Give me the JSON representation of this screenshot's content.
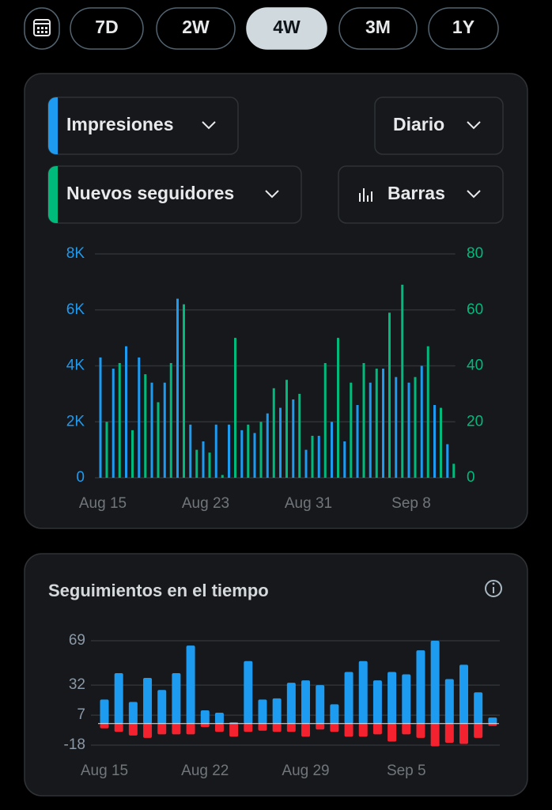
{
  "range_buttons": [
    "7D",
    "2W",
    "4W",
    "3M",
    "1Y"
  ],
  "selected_range": "4W",
  "controls": {
    "interval": "Diario",
    "chart_style": "Barras"
  },
  "chart_data": [
    {
      "type": "bar",
      "categories": [
        "Aug 15",
        null,
        null,
        null,
        null,
        null,
        null,
        null,
        "Aug 23",
        null,
        null,
        null,
        null,
        null,
        null,
        null,
        "Aug 31",
        null,
        null,
        null,
        null,
        null,
        null,
        null,
        "Sep 8",
        null,
        null,
        null
      ],
      "series": [
        {
          "name": "Impresiones",
          "color": "#1d9bf0",
          "values": [
            4300,
            3900,
            4700,
            4300,
            3400,
            3400,
            6400,
            1900,
            1300,
            1900,
            1900,
            1700,
            1600,
            2300,
            2500,
            2800,
            1000,
            1500,
            2000,
            1300,
            2600,
            3400,
            3900,
            3600,
            3400,
            4000,
            2600,
            1200
          ]
        },
        {
          "name": "Nuevos seguidores",
          "color": "#00ba7c",
          "axis": "y2",
          "values": [
            20,
            41,
            17,
            37,
            27,
            41,
            62,
            10,
            9,
            1,
            50,
            19,
            20,
            32,
            35,
            30,
            15,
            41,
            50,
            34,
            41,
            39,
            59,
            69,
            36,
            47,
            25,
            5
          ]
        }
      ],
      "ylim": [
        0,
        8000
      ],
      "yticks": [
        0,
        {
          "value": 2000,
          "label": "2K"
        },
        {
          "value": 4000,
          "label": "4K"
        },
        {
          "value": 6000,
          "label": "6K"
        },
        {
          "value": 8000,
          "label": "8K"
        }
      ],
      "y2lim": [
        0,
        80
      ],
      "y2ticks": [
        0,
        20,
        40,
        60,
        80
      ],
      "grid": true
    },
    {
      "type": "bar",
      "title": "Seguimientos en el tiempo",
      "categories": [
        "Aug 15",
        null,
        null,
        null,
        null,
        null,
        null,
        "Aug 22",
        null,
        null,
        null,
        null,
        null,
        null,
        "Aug 29",
        null,
        null,
        null,
        null,
        null,
        null,
        "Sep 5",
        null,
        null,
        null,
        null,
        null,
        null
      ],
      "series": [
        {
          "color": "#1d9bf0",
          "values": [
            20,
            42,
            18,
            38,
            28,
            42,
            65,
            11,
            9,
            1,
            52,
            20,
            21,
            34,
            36,
            32,
            16,
            43,
            52,
            36,
            43,
            41,
            61,
            69,
            37,
            49,
            26,
            5
          ]
        },
        {
          "color": "#f4212e",
          "values": [
            -4,
            -7,
            -10,
            -12,
            -9,
            -9,
            -9,
            -3,
            -7,
            -11,
            -7,
            -6,
            -7,
            -7,
            -11,
            -5,
            -7,
            -11,
            -11,
            -9,
            -15,
            -9,
            -12,
            -19,
            -16,
            -17,
            -12,
            -2
          ]
        }
      ],
      "ylim": [
        -18,
        69
      ],
      "yticks": [
        -18,
        7,
        32,
        69
      ],
      "grid": true
    }
  ]
}
